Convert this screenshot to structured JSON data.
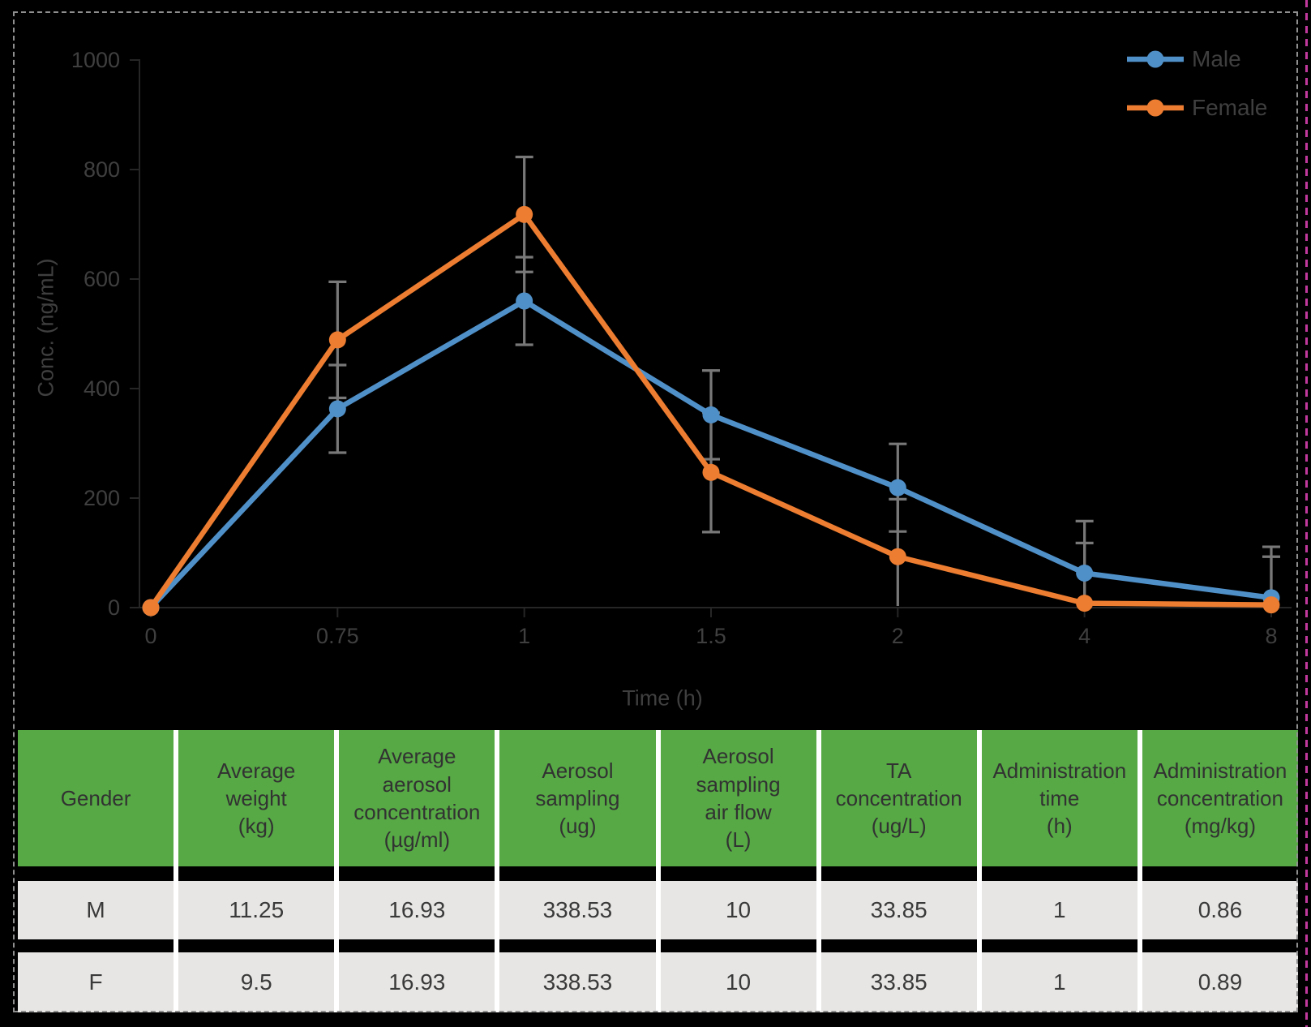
{
  "chart_data": {
    "type": "line",
    "title": "",
    "xlabel": "Time (h)",
    "ylabel": "Conc. (ng/mL)",
    "categories": [
      "0",
      "0.75",
      "1",
      "1.5",
      "2",
      "4",
      "8"
    ],
    "y_ticks": [
      0,
      200,
      400,
      600,
      800,
      1000
    ],
    "ylim": [
      0,
      1000
    ],
    "grid": "off",
    "legend_position": "top-right",
    "error_bar_color": "#787878",
    "series": [
      {
        "name": "Male",
        "color": "#5090C8",
        "values": [
          0,
          363,
          560,
          352,
          219,
          63,
          18
        ],
        "errors": [
          0,
          80,
          80,
          81,
          80,
          95,
          93
        ]
      },
      {
        "name": "Female",
        "color": "#ED7D31",
        "values": [
          0,
          489,
          718,
          247,
          93,
          8,
          5
        ],
        "errors": [
          0,
          106,
          105,
          109,
          105,
          110,
          88
        ]
      }
    ]
  },
  "table": {
    "header_bg": "#56A945",
    "row_bg": "#E7E6E4",
    "headers": [
      "Gender",
      "Average\nweight\n(kg)",
      "Average\naerosol\nconcentration\n(µg/ml)",
      "Aerosol\nsampling\n(ug)",
      "Aerosol\nsampling\nair flow\n(L)",
      "TA\nconcentration\n(ug/L)",
      "Administration\ntime\n(h)",
      "Administration\nconcentration\n(mg/kg)"
    ],
    "rows": [
      [
        "M",
        "11.25",
        "16.93",
        "338.53",
        "10",
        "33.85",
        "1",
        "0.86"
      ],
      [
        "F",
        "9.5",
        "16.93",
        "338.53",
        "10",
        "33.85",
        "1",
        "0.89"
      ]
    ]
  },
  "frame": {
    "border_color": "#8F8F8F",
    "edge_line_color": "#C2399E"
  }
}
